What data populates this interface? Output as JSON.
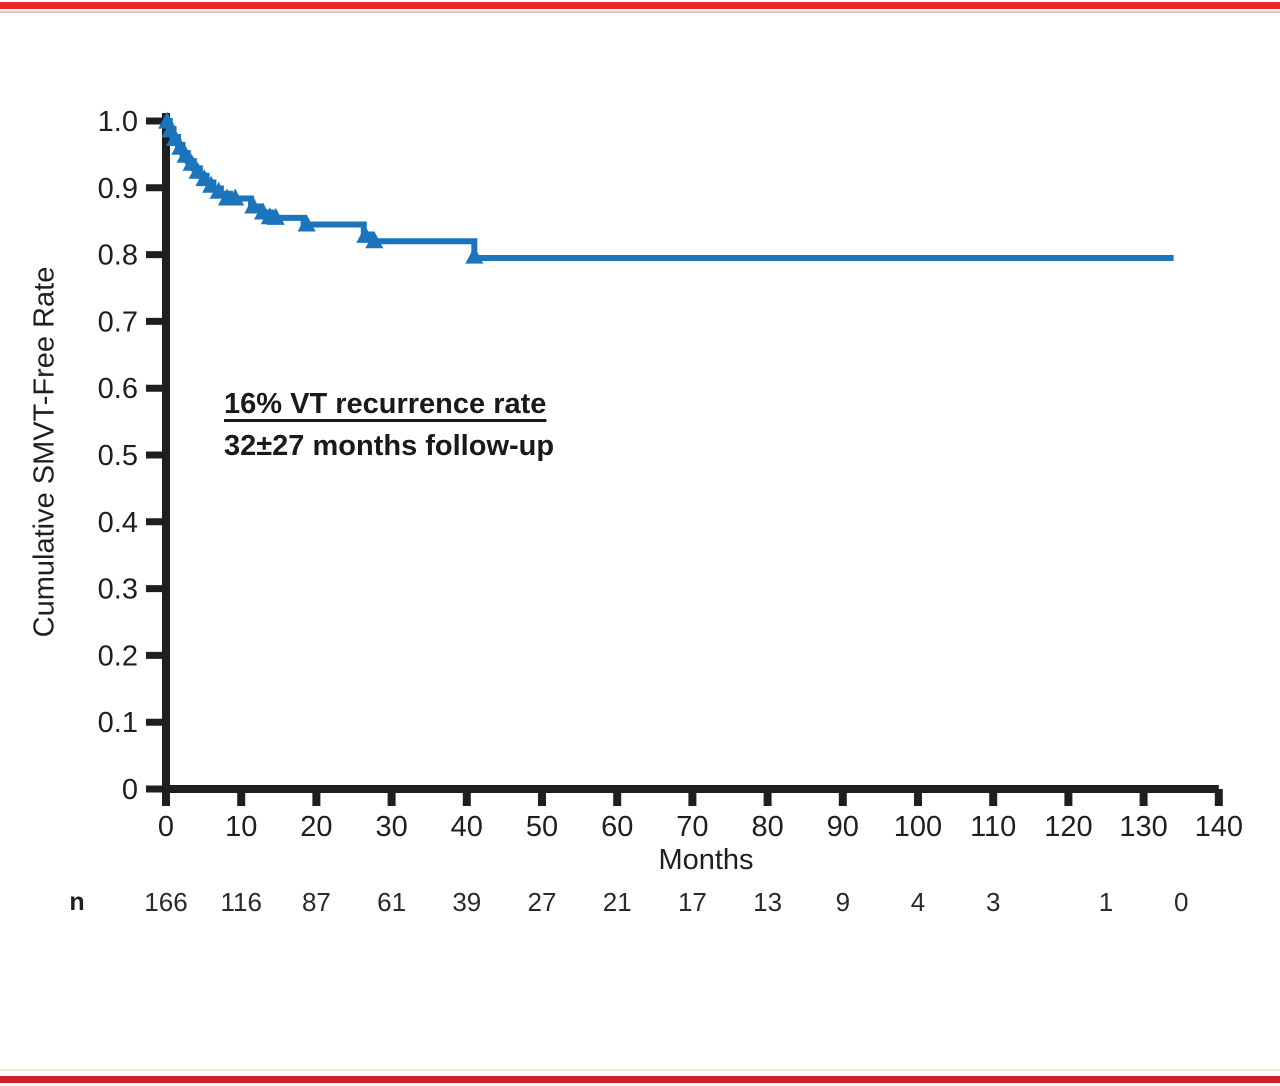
{
  "page": {
    "background": "#ffffff",
    "top_bar_color": "#E8272C",
    "top_bar_light_color": "#F2BCBE",
    "bottom_bar_color": "#CB2128",
    "bottom_bar_light_color": "#EFEAD8",
    "ink_color": "#1f1f1f"
  },
  "chart_data": {
    "type": "line",
    "subtype": "kaplan_meier_step",
    "title": "",
    "xlabel": "Months",
    "ylabel": "Cumulative SMVT-Free Rate",
    "xlim": [
      0,
      140
    ],
    "ylim": [
      0,
      1.0
    ],
    "grid": false,
    "legend": "none",
    "x_ticks": [
      0,
      10,
      20,
      30,
      40,
      50,
      60,
      70,
      80,
      90,
      100,
      110,
      120,
      130,
      140
    ],
    "y_ticks": [
      {
        "v": 1.0,
        "label": "1.0"
      },
      {
        "v": 0.9,
        "label": "0.9"
      },
      {
        "v": 0.8,
        "label": "0.8"
      },
      {
        "v": 0.7,
        "label": "0.7"
      },
      {
        "v": 0.6,
        "label": "0.6"
      },
      {
        "v": 0.5,
        "label": "0.5"
      },
      {
        "v": 0.4,
        "label": "0.4"
      },
      {
        "v": 0.3,
        "label": "0.3"
      },
      {
        "v": 0.2,
        "label": "0.2"
      },
      {
        "v": 0.1,
        "label": "0.1"
      },
      {
        "v": 0.0,
        "label": "0"
      }
    ],
    "series": [
      {
        "name": "Cumulative SMVT-free rate",
        "color": "#1C75BC",
        "line_width": 6,
        "steps": [
          [
            0,
            1.0
          ],
          [
            0.5,
            0.988
          ],
          [
            1.0,
            0.976
          ],
          [
            1.6,
            0.964
          ],
          [
            2.2,
            0.952
          ],
          [
            2.9,
            0.94
          ],
          [
            3.7,
            0.929
          ],
          [
            4.5,
            0.918
          ],
          [
            5.4,
            0.908
          ],
          [
            6.3,
            0.899
          ],
          [
            7.3,
            0.891
          ],
          [
            8.5,
            0.884
          ],
          [
            11.3,
            0.872
          ],
          [
            12.6,
            0.863
          ],
          [
            14.0,
            0.855
          ],
          [
            18.3,
            0.845
          ],
          [
            26.3,
            0.83
          ],
          [
            27.3,
            0.82
          ],
          [
            41.0,
            0.795
          ]
        ],
        "end_x": 134,
        "censor_marks": [
          [
            0.15,
            0.999
          ],
          [
            0.6,
            0.986
          ],
          [
            1.2,
            0.973
          ],
          [
            1.9,
            0.96
          ],
          [
            2.6,
            0.948
          ],
          [
            3.4,
            0.936
          ],
          [
            4.2,
            0.924
          ],
          [
            5.1,
            0.913
          ],
          [
            6.0,
            0.903
          ],
          [
            7.0,
            0.894
          ],
          [
            8.1,
            0.884
          ],
          [
            9.2,
            0.884
          ],
          [
            11.6,
            0.872
          ],
          [
            12.9,
            0.863
          ],
          [
            13.8,
            0.856
          ],
          [
            14.6,
            0.855
          ],
          [
            18.7,
            0.845
          ],
          [
            26.5,
            0.828
          ],
          [
            27.7,
            0.82
          ],
          [
            41.0,
            0.797
          ]
        ]
      }
    ],
    "annotation": {
      "line1": "16% VT recurrence rate",
      "line2": "32±27 months follow-up"
    },
    "at_risk": {
      "label": "n",
      "entries": [
        [
          0,
          "166"
        ],
        [
          10,
          "116"
        ],
        [
          20,
          "87"
        ],
        [
          30,
          "61"
        ],
        [
          40,
          "39"
        ],
        [
          50,
          "27"
        ],
        [
          60,
          "21"
        ],
        [
          70,
          "17"
        ],
        [
          80,
          "13"
        ],
        [
          90,
          "9"
        ],
        [
          100,
          "4"
        ],
        [
          110,
          "3"
        ],
        [
          125,
          "1"
        ],
        [
          135,
          "0"
        ]
      ]
    }
  }
}
